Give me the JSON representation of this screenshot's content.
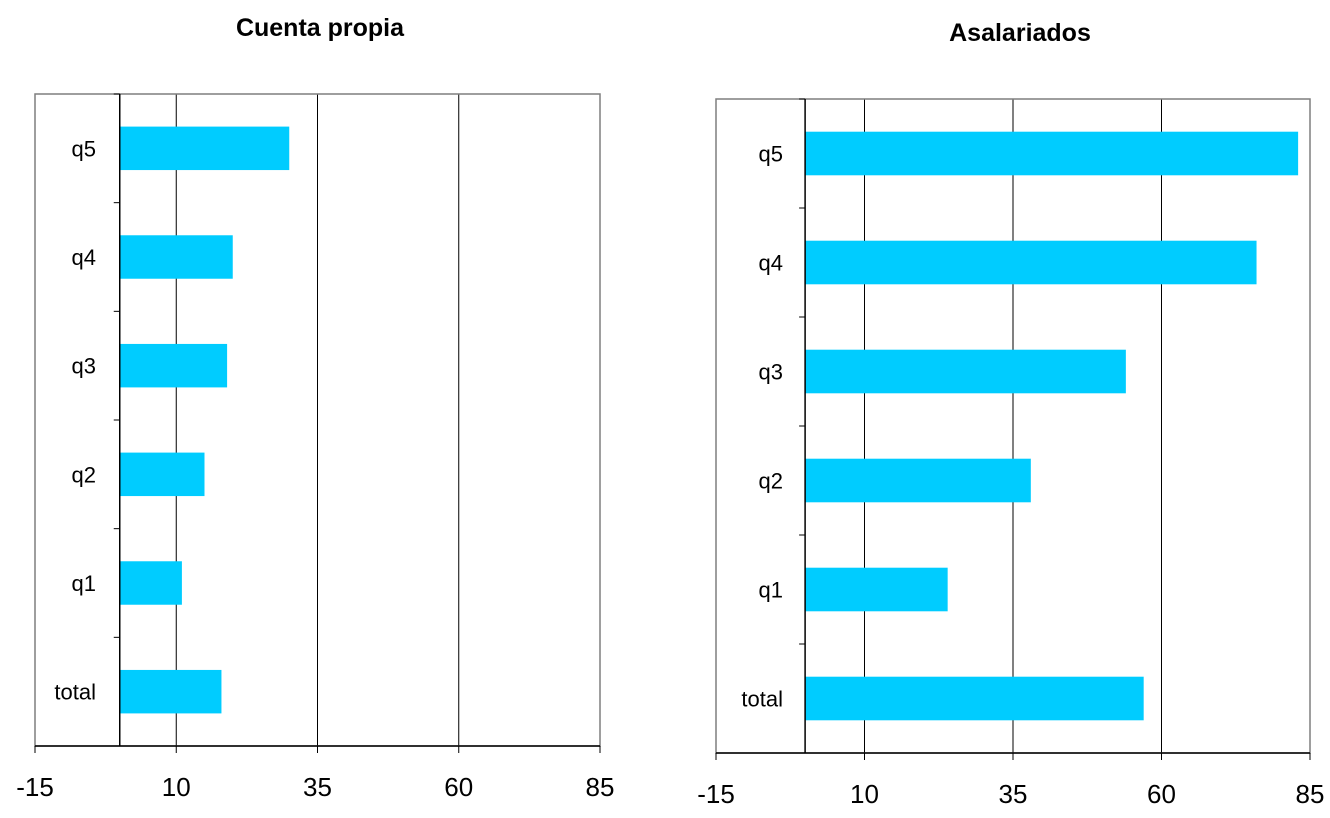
{
  "chart_data": [
    {
      "type": "bar",
      "orientation": "horizontal",
      "title": "Cuenta propia",
      "categories": [
        "total",
        "q1",
        "q2",
        "q3",
        "q4",
        "q5"
      ],
      "values": [
        18,
        11,
        15,
        19,
        20,
        30
      ],
      "xlim": [
        -15,
        85
      ],
      "xticks": [
        "-15",
        "10",
        "35",
        "60",
        "85"
      ],
      "bar_color": "#00CCFF",
      "grid": true
    },
    {
      "type": "bar",
      "orientation": "horizontal",
      "title": "Asalariados",
      "categories": [
        "total",
        "q1",
        "q2",
        "q3",
        "q4",
        "q5"
      ],
      "values": [
        57,
        24,
        38,
        54,
        76,
        83
      ],
      "xlim": [
        -15,
        85
      ],
      "xticks": [
        "-15",
        "10",
        "35",
        "60",
        "85"
      ],
      "bar_color": "#00CCFF",
      "grid": true
    }
  ]
}
